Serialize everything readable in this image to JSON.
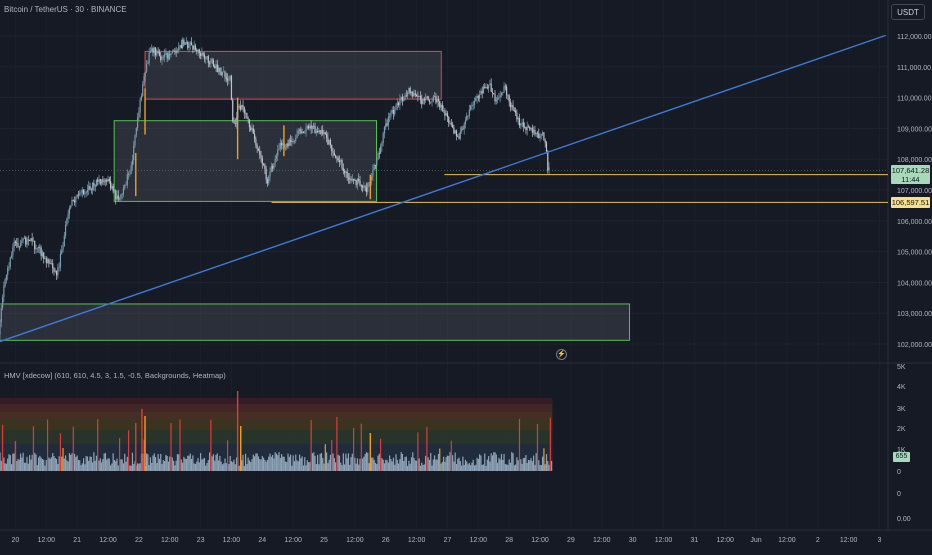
{
  "header": {
    "title": "Bitcoin / TetherUS · 30 · BINANCE",
    "currency": "USDT"
  },
  "indicator": {
    "title": "HMV [xdecow] (610, 610, 4.5, 3, 1.5, -0.5, Backgrounds, Heatmap)",
    "current_volume": "655"
  },
  "price_tags": {
    "current_price": "107,641.28",
    "countdown": "11:44",
    "level": "106,597.51"
  },
  "colors": {
    "background": "#161a25",
    "candle_up": "#7a9db0",
    "candle_down": "#bfc4cc",
    "highlight_candle": "#f0a020",
    "trendline": "#3d7ad6",
    "horizontal_level": "#e8c24a",
    "supply_zone_border": "#e04848",
    "demand_zone_border": "#56c050"
  },
  "icons": [
    "lightning-icon"
  ],
  "chart_data": [
    {
      "type": "candlestick",
      "y_axis_ticks": [
        "112,000.00",
        "111,000.00",
        "110,000.00",
        "109,000.00",
        "108,000.00",
        "107,000.00",
        "106,000.00",
        "105,000.00",
        "104,000.00",
        "103,000.00",
        "102,000.00"
      ],
      "y_range": [
        101800,
        112600
      ],
      "x_axis_ticks": [
        "20",
        "12:00",
        "21",
        "12:00",
        "22",
        "12:00",
        "23",
        "12:00",
        "24",
        "12:00",
        "25",
        "12:00",
        "26",
        "12:00",
        "27",
        "12:00",
        "28",
        "12:00",
        "29",
        "12:00",
        "30",
        "12:00",
        "31",
        "12:00",
        "Jun",
        "12:00",
        "2",
        "12:00",
        "3"
      ],
      "x_range_days": [
        19.75,
        34.17
      ],
      "price_path": [
        [
          19.75,
          102300
        ],
        [
          19.85,
          104200
        ],
        [
          20.0,
          105200
        ],
        [
          20.25,
          105400
        ],
        [
          20.5,
          104800
        ],
        [
          20.7,
          104300
        ],
        [
          20.9,
          106500
        ],
        [
          21.1,
          106900
        ],
        [
          21.3,
          107200
        ],
        [
          21.5,
          107400
        ],
        [
          21.7,
          106600
        ],
        [
          21.9,
          107800
        ],
        [
          22.05,
          110000
        ],
        [
          22.2,
          111600
        ],
        [
          22.4,
          111300
        ],
        [
          22.6,
          111500
        ],
        [
          22.75,
          111800
        ],
        [
          23.0,
          111500
        ],
        [
          23.2,
          111100
        ],
        [
          23.5,
          110600
        ],
        [
          23.55,
          109000
        ],
        [
          23.65,
          109800
        ],
        [
          23.8,
          109200
        ],
        [
          24.0,
          108100
        ],
        [
          24.1,
          107300
        ],
        [
          24.3,
          108400
        ],
        [
          24.5,
          108600
        ],
        [
          24.65,
          108900
        ],
        [
          24.8,
          109000
        ],
        [
          25.0,
          108900
        ],
        [
          25.2,
          108200
        ],
        [
          25.4,
          107500
        ],
        [
          25.6,
          107200
        ],
        [
          25.7,
          107000
        ],
        [
          25.9,
          108100
        ],
        [
          26.0,
          109000
        ],
        [
          26.2,
          109800
        ],
        [
          26.4,
          110200
        ],
        [
          26.6,
          109900
        ],
        [
          26.8,
          110000
        ],
        [
          27.0,
          109400
        ],
        [
          27.2,
          108600
        ],
        [
          27.3,
          109300
        ],
        [
          27.5,
          110000
        ],
        [
          27.7,
          110500
        ],
        [
          27.8,
          109800
        ],
        [
          27.95,
          110300
        ],
        [
          28.05,
          109700
        ],
        [
          28.2,
          109100
        ],
        [
          28.4,
          108900
        ],
        [
          28.6,
          108700
        ],
        [
          28.65,
          107650
        ]
      ],
      "highlighted_candles": [
        [
          21.95,
          106800,
          108200
        ],
        [
          22.1,
          108800,
          110300
        ],
        [
          23.6,
          108000,
          110000
        ],
        [
          24.35,
          108100,
          109100
        ],
        [
          25.75,
          106700,
          107500
        ]
      ],
      "zones": [
        {
          "name": "supply",
          "y_top": 111500,
          "y_bottom": 109950,
          "x_start": 22.1,
          "x_end": 26.9,
          "border": "#e04848"
        },
        {
          "name": "demand-upper",
          "y_top": 109250,
          "y_bottom": 106630,
          "x_start": 21.6,
          "x_end": 25.85,
          "border": "#56c050"
        },
        {
          "name": "demand-lower",
          "y_top": 103300,
          "y_bottom": 102120,
          "x_start": 19.7,
          "x_end": 29.95,
          "border": "#56c050"
        }
      ],
      "levels": [
        {
          "price": 107500,
          "x_start": 26.95,
          "x_end": 34.2
        },
        {
          "price": 106597.51,
          "x_start": 24.15,
          "x_end": 34.2
        }
      ],
      "trendline": [
        [
          19.75,
          102080
        ],
        [
          34.1,
          112020
        ]
      ]
    },
    {
      "type": "bar",
      "y_axis_ticks": [
        "5K",
        "4K",
        "3K",
        "2K",
        "1K",
        "0",
        "0",
        "0.00"
      ],
      "heatmap_bands": [
        "#3a1f24",
        "#4a2826",
        "#4d3324",
        "#40381f",
        "#2c3a2a",
        "#223040"
      ],
      "volume_data_end_day": 28.7
    }
  ]
}
